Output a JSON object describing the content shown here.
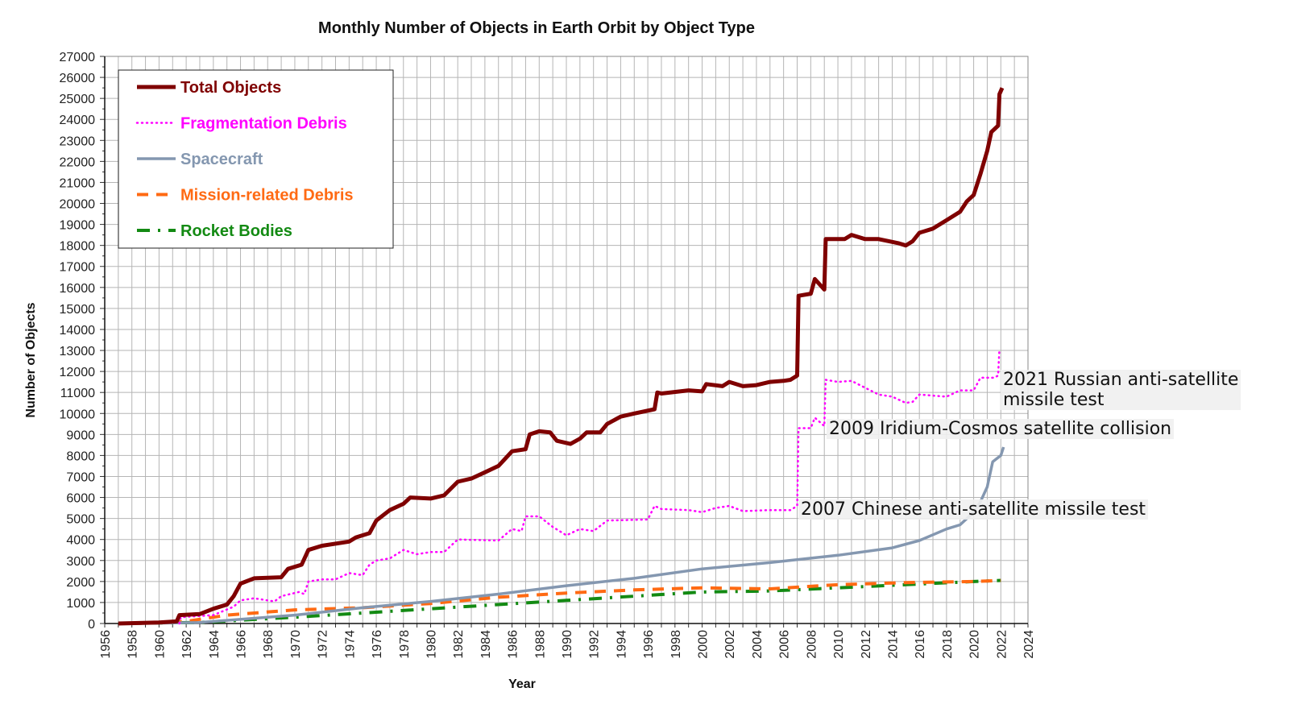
{
  "chart_data": {
    "type": "line",
    "title": "Monthly Number of Objects in Earth Orbit by Object Type",
    "xlabel": "Year",
    "ylabel": "Number of Objects",
    "xlim": [
      1956,
      2024
    ],
    "ylim": [
      0,
      27000
    ],
    "x_ticks": [
      1956,
      1958,
      1960,
      1962,
      1964,
      1966,
      1968,
      1970,
      1972,
      1974,
      1976,
      1978,
      1980,
      1982,
      1984,
      1986,
      1988,
      1990,
      1992,
      1994,
      1996,
      1998,
      2000,
      2002,
      2004,
      2006,
      2008,
      2010,
      2012,
      2014,
      2016,
      2018,
      2020,
      2022,
      2024
    ],
    "y_ticks": [
      0,
      1000,
      2000,
      3000,
      4000,
      5000,
      6000,
      7000,
      8000,
      9000,
      10000,
      11000,
      12000,
      13000,
      14000,
      15000,
      16000,
      17000,
      18000,
      19000,
      20000,
      21000,
      22000,
      23000,
      24000,
      25000,
      26000,
      27000
    ],
    "grid": true,
    "legend_position": "top-left",
    "series": [
      {
        "name": "Total Objects",
        "color": "#7f0000",
        "style": "solid-thick",
        "points": [
          [
            1957,
            0
          ],
          [
            1960,
            50
          ],
          [
            1961.3,
            100
          ],
          [
            1961.5,
            400
          ],
          [
            1963,
            450
          ],
          [
            1964,
            700
          ],
          [
            1965,
            900
          ],
          [
            1965.5,
            1300
          ],
          [
            1966,
            1900
          ],
          [
            1967,
            2150
          ],
          [
            1969,
            2200
          ],
          [
            1969.5,
            2600
          ],
          [
            1970.5,
            2800
          ],
          [
            1971,
            3500
          ],
          [
            1972,
            3700
          ],
          [
            1974,
            3900
          ],
          [
            1974.5,
            4100
          ],
          [
            1975.5,
            4300
          ],
          [
            1976,
            4900
          ],
          [
            1977,
            5400
          ],
          [
            1978,
            5700
          ],
          [
            1978.5,
            6000
          ],
          [
            1980,
            5950
          ],
          [
            1981,
            6100
          ],
          [
            1982,
            6750
          ],
          [
            1983,
            6900
          ],
          [
            1984,
            7200
          ],
          [
            1985,
            7500
          ],
          [
            1986,
            8200
          ],
          [
            1987,
            8300
          ],
          [
            1987.3,
            9000
          ],
          [
            1988,
            9150
          ],
          [
            1988.8,
            9100
          ],
          [
            1989.3,
            8700
          ],
          [
            1990.3,
            8550
          ],
          [
            1991,
            8800
          ],
          [
            1991.5,
            9100
          ],
          [
            1992.5,
            9100
          ],
          [
            1993,
            9500
          ],
          [
            1994,
            9850
          ],
          [
            1995,
            10000
          ],
          [
            1996.5,
            10200
          ],
          [
            1996.7,
            11000
          ],
          [
            1997,
            10950
          ],
          [
            1999,
            11100
          ],
          [
            2000,
            11050
          ],
          [
            2000.3,
            11400
          ],
          [
            2001.5,
            11300
          ],
          [
            2002,
            11500
          ],
          [
            2003,
            11300
          ],
          [
            2004,
            11350
          ],
          [
            2005,
            11500
          ],
          [
            2006,
            11550
          ],
          [
            2006.5,
            11600
          ],
          [
            2007,
            11800
          ],
          [
            2007.1,
            15600
          ],
          [
            2008,
            15700
          ],
          [
            2008.3,
            16400
          ],
          [
            2009,
            15900
          ],
          [
            2009.1,
            18300
          ],
          [
            2010.5,
            18300
          ],
          [
            2011,
            18500
          ],
          [
            2012,
            18300
          ],
          [
            2013,
            18300
          ],
          [
            2014.5,
            18100
          ],
          [
            2015,
            18000
          ],
          [
            2015.5,
            18200
          ],
          [
            2016,
            18600
          ],
          [
            2017,
            18800
          ],
          [
            2018,
            19200
          ],
          [
            2019,
            19600
          ],
          [
            2019.5,
            20100
          ],
          [
            2020,
            20400
          ],
          [
            2020.5,
            21400
          ],
          [
            2021,
            22500
          ],
          [
            2021.3,
            23400
          ],
          [
            2021.8,
            23700
          ],
          [
            2021.9,
            25200
          ],
          [
            2022.1,
            25500
          ]
        ]
      },
      {
        "name": "Fragmentation Debris",
        "color": "#ff00ff",
        "style": "dotted",
        "points": [
          [
            1961.5,
            0
          ],
          [
            1961.6,
            300
          ],
          [
            1964,
            400
          ],
          [
            1965.5,
            800
          ],
          [
            1966,
            1100
          ],
          [
            1967,
            1200
          ],
          [
            1968.5,
            1050
          ],
          [
            1969,
            1300
          ],
          [
            1970.3,
            1500
          ],
          [
            1970.7,
            1400
          ],
          [
            1971,
            2000
          ],
          [
            1972,
            2100
          ],
          [
            1973,
            2100
          ],
          [
            1974,
            2400
          ],
          [
            1975,
            2300
          ],
          [
            1975.5,
            2800
          ],
          [
            1976,
            3000
          ],
          [
            1977,
            3100
          ],
          [
            1978,
            3500
          ],
          [
            1979,
            3300
          ],
          [
            1980,
            3400
          ],
          [
            1981,
            3400
          ],
          [
            1982,
            4000
          ],
          [
            1985,
            3950
          ],
          [
            1986,
            4500
          ],
          [
            1986.7,
            4400
          ],
          [
            1987,
            5100
          ],
          [
            1988,
            5100
          ],
          [
            1989,
            4600
          ],
          [
            1990,
            4200
          ],
          [
            1991,
            4500
          ],
          [
            1992,
            4400
          ],
          [
            1993,
            4900
          ],
          [
            1996,
            4950
          ],
          [
            1996.5,
            5600
          ],
          [
            1997,
            5450
          ],
          [
            1999,
            5400
          ],
          [
            2000,
            5300
          ],
          [
            2001,
            5500
          ],
          [
            2002,
            5600
          ],
          [
            2003,
            5350
          ],
          [
            2005,
            5400
          ],
          [
            2006.5,
            5400
          ],
          [
            2007,
            5600
          ],
          [
            2007.1,
            9300
          ],
          [
            2008,
            9300
          ],
          [
            2008.3,
            9800
          ],
          [
            2009,
            9400
          ],
          [
            2009.1,
            11600
          ],
          [
            2010,
            11500
          ],
          [
            2011,
            11550
          ],
          [
            2013,
            10900
          ],
          [
            2014,
            10800
          ],
          [
            2015,
            10500
          ],
          [
            2015.5,
            10550
          ],
          [
            2016,
            10900
          ],
          [
            2018,
            10800
          ],
          [
            2019,
            11100
          ],
          [
            2020,
            11100
          ],
          [
            2020.5,
            11700
          ],
          [
            2021.5,
            11700
          ],
          [
            2021.8,
            11800
          ],
          [
            2021.9,
            13100
          ]
        ]
      },
      {
        "name": "Spacecraft",
        "color": "#8497b0",
        "style": "solid",
        "points": [
          [
            1958,
            0
          ],
          [
            1963,
            50
          ],
          [
            1965,
            150
          ],
          [
            1970,
            400
          ],
          [
            1975,
            750
          ],
          [
            1980,
            1050
          ],
          [
            1985,
            1400
          ],
          [
            1990,
            1800
          ],
          [
            1995,
            2150
          ],
          [
            2000,
            2600
          ],
          [
            2005,
            2900
          ],
          [
            2010,
            3250
          ],
          [
            2014,
            3600
          ],
          [
            2016,
            3950
          ],
          [
            2018,
            4500
          ],
          [
            2019,
            4700
          ],
          [
            2019.5,
            5000
          ],
          [
            2020,
            5300
          ],
          [
            2020.5,
            5800
          ],
          [
            2021,
            6500
          ],
          [
            2021.4,
            7700
          ],
          [
            2022,
            8000
          ],
          [
            2022.2,
            8400
          ]
        ]
      },
      {
        "name": "Mission-related Debris",
        "color": "#ff6a13",
        "style": "dashed",
        "points": [
          [
            1958,
            0
          ],
          [
            1962,
            100
          ],
          [
            1965,
            400
          ],
          [
            1970,
            650
          ],
          [
            1975,
            750
          ],
          [
            1980,
            950
          ],
          [
            1985,
            1250
          ],
          [
            1990,
            1450
          ],
          [
            1995,
            1600
          ],
          [
            2000,
            1700
          ],
          [
            2005,
            1650
          ],
          [
            2010,
            1850
          ],
          [
            2015,
            1950
          ],
          [
            2020,
            2000
          ],
          [
            2022,
            2050
          ]
        ]
      },
      {
        "name": "Rocket Bodies",
        "color": "#138a13",
        "style": "dash-dot",
        "points": [
          [
            1957,
            0
          ],
          [
            1963,
            50
          ],
          [
            1970,
            300
          ],
          [
            1975,
            500
          ],
          [
            1980,
            700
          ],
          [
            1985,
            900
          ],
          [
            1990,
            1100
          ],
          [
            1995,
            1300
          ],
          [
            2000,
            1500
          ],
          [
            2005,
            1550
          ],
          [
            2010,
            1700
          ],
          [
            2015,
            1850
          ],
          [
            2020,
            2000
          ],
          [
            2022,
            2050
          ]
        ]
      }
    ],
    "annotations": [
      {
        "line1": "2021 Russian anti-satellite",
        "line2": "missile test"
      },
      {
        "line1": "2009 Iridium-Cosmos satellite collision"
      },
      {
        "line1": "2007 Chinese anti-satellite missile test"
      }
    ]
  }
}
